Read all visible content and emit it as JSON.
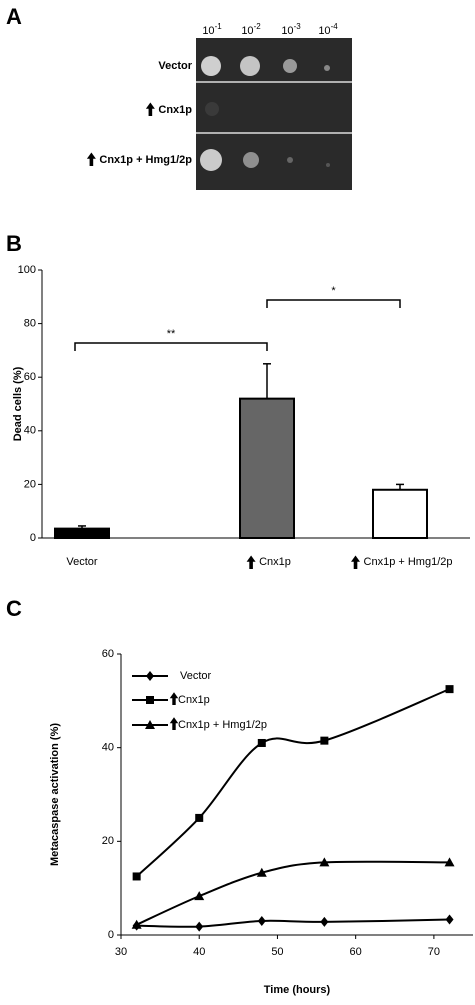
{
  "panel_a": {
    "label": "A",
    "dilution_base": "10",
    "dilution_exponents": [
      "-1",
      "-2",
      "-3",
      "-4"
    ],
    "strains": [
      "Vector",
      "Cnx1p",
      "Cnx1p + Hmg1/2p"
    ]
  },
  "chart_data": [
    {
      "type": "bar",
      "label": "B",
      "ylabel": "Dead cells (%)",
      "categories": [
        "Vector",
        "Cnx1p",
        "Cnx1p + Hmg1/2p"
      ],
      "values": [
        3.5,
        52,
        18
      ],
      "errors": [
        1,
        13,
        2
      ],
      "colors": [
        "#000000",
        "#666666",
        "#ffffff"
      ],
      "ylim": [
        0,
        100
      ],
      "yticks": [
        0,
        20,
        40,
        60,
        80,
        100
      ],
      "annotations": [
        "**",
        "*"
      ]
    },
    {
      "type": "line",
      "label": "C",
      "xlabel": "Time (hours)",
      "ylabel": "Metacaspase activation (%)",
      "x": [
        32,
        40,
        48,
        56,
        72
      ],
      "series": [
        {
          "name": "Vector",
          "color": "#000000",
          "marker": "diamond",
          "values": [
            2,
            1.8,
            3,
            2.8,
            3.3
          ]
        },
        {
          "name": "Cnx1p",
          "color": "#000000",
          "marker": "square",
          "values": [
            12.5,
            25,
            41,
            41.5,
            52.5
          ]
        },
        {
          "name": "Cnx1p + Hmg1/2p",
          "color": "#000000",
          "marker": "triangle",
          "values": [
            2.2,
            8.3,
            13.3,
            15.5,
            15.5
          ]
        }
      ],
      "xlim": [
        30,
        75
      ],
      "xticks": [
        30,
        40,
        50,
        60,
        70
      ],
      "ylim": [
        0,
        60
      ],
      "yticks": [
        0,
        20,
        40,
        60
      ],
      "legend": "top-left"
    }
  ]
}
